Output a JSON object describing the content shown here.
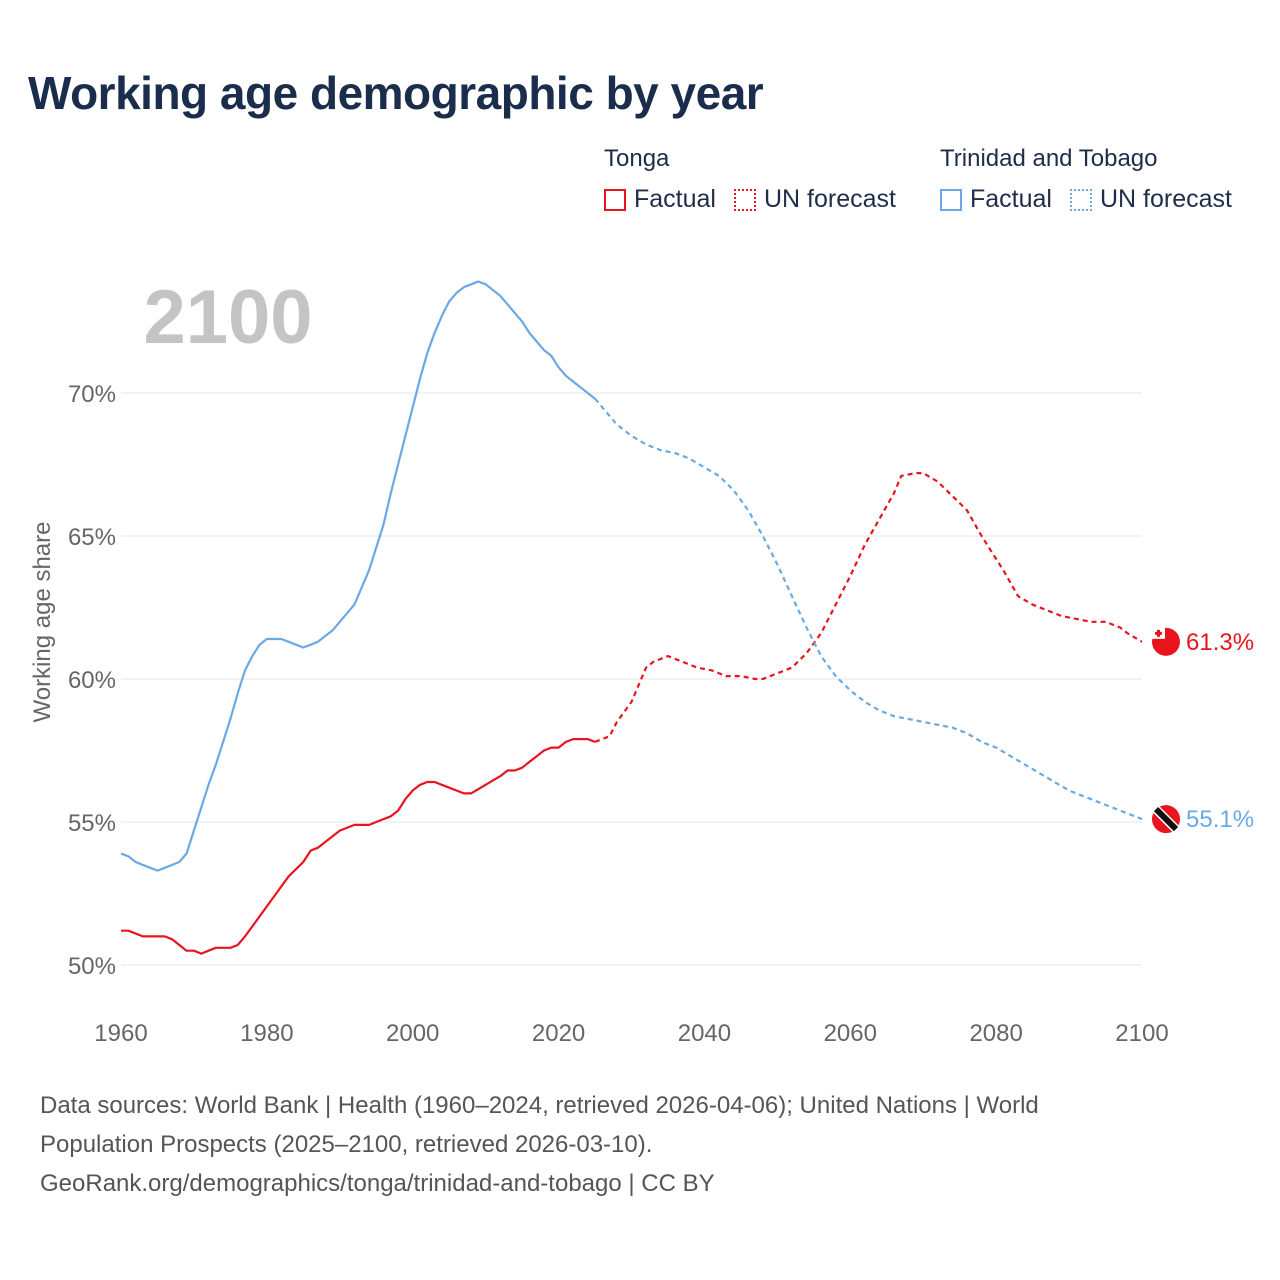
{
  "title": "Working age demographic by year",
  "legend": {
    "groups": [
      {
        "name": "Tonga",
        "factual_label": "Factual",
        "forecast_label": "UN forecast",
        "color": "#e8141e"
      },
      {
        "name": "Trinidad and Tobago",
        "factual_label": "Factual",
        "forecast_label": "UN forecast",
        "color": "#6aa9e4"
      }
    ]
  },
  "year_display": "2100",
  "footer": {
    "line1": "Data sources: World Bank | Health (1960–2024, retrieved 2026-04-06); United Nations | World",
    "line2": "Population Prospects (2025–2100, retrieved 2026-03-10).",
    "line3": "GeoRank.org/demographics/tonga/trinidad-and-tobago | CC BY"
  },
  "chart_data": {
    "type": "line",
    "title": "Working age demographic by year",
    "xlabel": "",
    "ylabel": "Working age share",
    "xlim": [
      1960,
      2100
    ],
    "ylim": [
      48.5,
      73.5
    ],
    "x_ticks": [
      "1960",
      "1980",
      "2000",
      "2020",
      "2040",
      "2060",
      "2080",
      "2100"
    ],
    "y_ticks": [
      "50%",
      "55%",
      "60%",
      "65%",
      "70%"
    ],
    "y_tick_values": [
      50,
      55,
      60,
      65,
      70
    ],
    "grid": true,
    "forecast_start_year": 2025,
    "series": [
      {
        "name": "Tonga",
        "color": "#e8141e",
        "end_label": "61.3%",
        "flag_icon": "tonga-flag-icon",
        "points": [
          [
            1960,
            51.2
          ],
          [
            1961,
            51.2
          ],
          [
            1963,
            51.0
          ],
          [
            1965,
            51.0
          ],
          [
            1966,
            51.0
          ],
          [
            1967,
            50.9
          ],
          [
            1969,
            50.5
          ],
          [
            1970,
            50.5
          ],
          [
            1971,
            50.4
          ],
          [
            1972,
            50.5
          ],
          [
            1973,
            50.6
          ],
          [
            1975,
            50.6
          ],
          [
            1976,
            50.7
          ],
          [
            1977,
            51.0
          ],
          [
            1979,
            51.7
          ],
          [
            1981,
            52.4
          ],
          [
            1983,
            53.1
          ],
          [
            1985,
            53.6
          ],
          [
            1986,
            54.0
          ],
          [
            1987,
            54.1
          ],
          [
            1988,
            54.3
          ],
          [
            1990,
            54.7
          ],
          [
            1992,
            54.9
          ],
          [
            1994,
            54.9
          ],
          [
            1996,
            55.1
          ],
          [
            1997,
            55.2
          ],
          [
            1998,
            55.4
          ],
          [
            1999,
            55.8
          ],
          [
            2000,
            56.1
          ],
          [
            2001,
            56.3
          ],
          [
            2002,
            56.4
          ],
          [
            2003,
            56.4
          ],
          [
            2005,
            56.2
          ],
          [
            2006,
            56.1
          ],
          [
            2007,
            56.0
          ],
          [
            2008,
            56.0
          ],
          [
            2010,
            56.3
          ],
          [
            2012,
            56.6
          ],
          [
            2013,
            56.8
          ],
          [
            2014,
            56.8
          ],
          [
            2015,
            56.9
          ],
          [
            2016,
            57.1
          ],
          [
            2017,
            57.3
          ],
          [
            2018,
            57.5
          ],
          [
            2019,
            57.6
          ],
          [
            2020,
            57.6
          ],
          [
            2021,
            57.8
          ],
          [
            2022,
            57.9
          ],
          [
            2023,
            57.9
          ],
          [
            2024,
            57.9
          ],
          [
            2025,
            57.8
          ],
          [
            2027,
            58.0
          ],
          [
            2028,
            58.5
          ],
          [
            2030,
            59.2
          ],
          [
            2031,
            59.8
          ],
          [
            2032,
            60.4
          ],
          [
            2033,
            60.6
          ],
          [
            2035,
            60.8
          ],
          [
            2037,
            60.6
          ],
          [
            2039,
            60.4
          ],
          [
            2041,
            60.3
          ],
          [
            2043,
            60.1
          ],
          [
            2045,
            60.1
          ],
          [
            2047,
            60.0
          ],
          [
            2048,
            60.0
          ],
          [
            2050,
            60.2
          ],
          [
            2052,
            60.4
          ],
          [
            2054,
            60.9
          ],
          [
            2056,
            61.6
          ],
          [
            2058,
            62.6
          ],
          [
            2060,
            63.6
          ],
          [
            2062,
            64.7
          ],
          [
            2064,
            65.6
          ],
          [
            2066,
            66.5
          ],
          [
            2067,
            67.1
          ],
          [
            2069,
            67.2
          ],
          [
            2070,
            67.2
          ],
          [
            2072,
            66.9
          ],
          [
            2074,
            66.4
          ],
          [
            2076,
            65.9
          ],
          [
            2078,
            65.0
          ],
          [
            2080,
            64.2
          ],
          [
            2081,
            63.8
          ],
          [
            2083,
            62.9
          ],
          [
            2085,
            62.6
          ],
          [
            2087,
            62.4
          ],
          [
            2089,
            62.2
          ],
          [
            2091,
            62.1
          ],
          [
            2093,
            62.0
          ],
          [
            2095,
            62.0
          ],
          [
            2097,
            61.8
          ],
          [
            2098,
            61.6
          ],
          [
            2100,
            61.3
          ]
        ]
      },
      {
        "name": "Trinidad and Tobago",
        "color": "#6aa9e4",
        "end_label": "55.1%",
        "flag_icon": "trinidad-flag-icon",
        "points": [
          [
            1960,
            53.9
          ],
          [
            1961,
            53.8
          ],
          [
            1962,
            53.6
          ],
          [
            1964,
            53.4
          ],
          [
            1965,
            53.3
          ],
          [
            1966,
            53.4
          ],
          [
            1968,
            53.6
          ],
          [
            1969,
            53.9
          ],
          [
            1970,
            54.7
          ],
          [
            1971,
            55.5
          ],
          [
            1972,
            56.3
          ],
          [
            1973,
            57.0
          ],
          [
            1974,
            57.8
          ],
          [
            1975,
            58.6
          ],
          [
            1976,
            59.5
          ],
          [
            1977,
            60.3
          ],
          [
            1978,
            60.8
          ],
          [
            1979,
            61.2
          ],
          [
            1980,
            61.4
          ],
          [
            1981,
            61.4
          ],
          [
            1982,
            61.4
          ],
          [
            1983,
            61.3
          ],
          [
            1985,
            61.1
          ],
          [
            1986,
            61.2
          ],
          [
            1987,
            61.3
          ],
          [
            1989,
            61.7
          ],
          [
            1990,
            62.0
          ],
          [
            1992,
            62.6
          ],
          [
            1993,
            63.2
          ],
          [
            1994,
            63.8
          ],
          [
            1995,
            64.6
          ],
          [
            1996,
            65.4
          ],
          [
            1997,
            66.5
          ],
          [
            1998,
            67.5
          ],
          [
            1999,
            68.5
          ],
          [
            2000,
            69.5
          ],
          [
            2001,
            70.5
          ],
          [
            2002,
            71.4
          ],
          [
            2003,
            72.1
          ],
          [
            2004,
            72.7
          ],
          [
            2005,
            73.2
          ],
          [
            2006,
            73.5
          ],
          [
            2007,
            73.7
          ],
          [
            2008,
            73.8
          ],
          [
            2009,
            73.9
          ],
          [
            2010,
            73.8
          ],
          [
            2011,
            73.6
          ],
          [
            2012,
            73.4
          ],
          [
            2013,
            73.1
          ],
          [
            2014,
            72.8
          ],
          [
            2015,
            72.5
          ],
          [
            2016,
            72.1
          ],
          [
            2017,
            71.8
          ],
          [
            2018,
            71.5
          ],
          [
            2019,
            71.3
          ],
          [
            2020,
            70.9
          ],
          [
            2021,
            70.6
          ],
          [
            2022,
            70.4
          ],
          [
            2023,
            70.2
          ],
          [
            2024,
            70.0
          ],
          [
            2025,
            69.8
          ],
          [
            2026,
            69.5
          ],
          [
            2027,
            69.2
          ],
          [
            2028,
            68.9
          ],
          [
            2030,
            68.5
          ],
          [
            2032,
            68.2
          ],
          [
            2034,
            68.0
          ],
          [
            2036,
            67.9
          ],
          [
            2038,
            67.7
          ],
          [
            2040,
            67.4
          ],
          [
            2042,
            67.1
          ],
          [
            2044,
            66.6
          ],
          [
            2046,
            65.9
          ],
          [
            2048,
            65.0
          ],
          [
            2050,
            64.0
          ],
          [
            2052,
            62.9
          ],
          [
            2054,
            61.8
          ],
          [
            2056,
            60.8
          ],
          [
            2058,
            60.1
          ],
          [
            2060,
            59.6
          ],
          [
            2062,
            59.2
          ],
          [
            2064,
            58.9
          ],
          [
            2066,
            58.7
          ],
          [
            2068,
            58.6
          ],
          [
            2070,
            58.5
          ],
          [
            2072,
            58.4
          ],
          [
            2074,
            58.3
          ],
          [
            2076,
            58.1
          ],
          [
            2078,
            57.8
          ],
          [
            2080,
            57.6
          ],
          [
            2082,
            57.3
          ],
          [
            2084,
            57.0
          ],
          [
            2086,
            56.7
          ],
          [
            2088,
            56.4
          ],
          [
            2090,
            56.1
          ],
          [
            2092,
            55.9
          ],
          [
            2094,
            55.7
          ],
          [
            2096,
            55.5
          ],
          [
            2098,
            55.3
          ],
          [
            2100,
            55.1
          ]
        ]
      }
    ]
  }
}
